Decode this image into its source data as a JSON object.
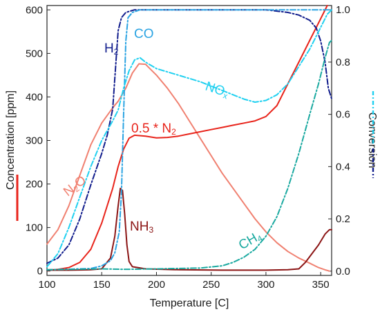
{
  "chart_data": {
    "type": "line",
    "xlabel": "Temperature [C]",
    "ylabel_left": "Concentration [ppm]",
    "ylabel_right": "Conversion",
    "xlim": [
      100,
      360
    ],
    "ylim_left": [
      -10,
      610
    ],
    "ylim_right": [
      -0.0164,
      1.0164
    ],
    "x_ticks": [
      100,
      150,
      200,
      250,
      300,
      350
    ],
    "y_left_ticks": [
      0,
      100,
      200,
      300,
      400,
      500,
      600
    ],
    "y_right_ticks": [
      "0.0",
      "0.2",
      "0.4",
      "0.6",
      "0.8",
      "1.0"
    ],
    "grid": false,
    "series": [
      {
        "name": "N2O",
        "label_main": "N",
        "label_sub": "2",
        "label_tail": "O",
        "axis": "left",
        "color": "#f08070",
        "dash": "solid",
        "points": [
          [
            100,
            62
          ],
          [
            110,
            95
          ],
          [
            120,
            150
          ],
          [
            130,
            220
          ],
          [
            140,
            290
          ],
          [
            150,
            340
          ],
          [
            160,
            375
          ],
          [
            165,
            390
          ],
          [
            172,
            420
          ],
          [
            178,
            455
          ],
          [
            184,
            476
          ],
          [
            190,
            475
          ],
          [
            200,
            450
          ],
          [
            210,
            420
          ],
          [
            220,
            385
          ],
          [
            230,
            345
          ],
          [
            240,
            305
          ],
          [
            250,
            265
          ],
          [
            260,
            225
          ],
          [
            270,
            190
          ],
          [
            280,
            155
          ],
          [
            290,
            120
          ],
          [
            300,
            90
          ],
          [
            310,
            65
          ],
          [
            320,
            45
          ],
          [
            330,
            30
          ],
          [
            340,
            18
          ],
          [
            348,
            8
          ],
          [
            355,
            2
          ],
          [
            358,
            0
          ]
        ]
      },
      {
        "name": "0.5 * N2",
        "label_main": "0.5 * N",
        "label_sub": "2",
        "label_tail": "",
        "axis": "left",
        "color": "#e8231a",
        "dash": "solid",
        "points": [
          [
            100,
            2
          ],
          [
            110,
            4
          ],
          [
            120,
            8
          ],
          [
            130,
            20
          ],
          [
            140,
            50
          ],
          [
            150,
            110
          ],
          [
            160,
            190
          ],
          [
            165,
            240
          ],
          [
            170,
            280
          ],
          [
            175,
            305
          ],
          [
            180,
            312
          ],
          [
            190,
            310
          ],
          [
            200,
            306
          ],
          [
            210,
            307
          ],
          [
            220,
            310
          ],
          [
            230,
            315
          ],
          [
            240,
            320
          ],
          [
            250,
            325
          ],
          [
            260,
            330
          ],
          [
            270,
            335
          ],
          [
            280,
            340
          ],
          [
            290,
            345
          ],
          [
            300,
            355
          ],
          [
            310,
            380
          ],
          [
            320,
            430
          ],
          [
            330,
            480
          ],
          [
            340,
            530
          ],
          [
            350,
            580
          ],
          [
            356,
            610
          ]
        ]
      },
      {
        "name": "NH3",
        "label_main": "NH",
        "label_sub": "3",
        "label_tail": "",
        "axis": "left",
        "color": "#8b1414",
        "dash": "solid",
        "points": [
          [
            100,
            2
          ],
          [
            120,
            2
          ],
          [
            140,
            3
          ],
          [
            150,
            5
          ],
          [
            158,
            30
          ],
          [
            162,
            80
          ],
          [
            165,
            150
          ],
          [
            167,
            190
          ],
          [
            169,
            185
          ],
          [
            171,
            130
          ],
          [
            173,
            60
          ],
          [
            175,
            22
          ],
          [
            178,
            10
          ],
          [
            190,
            5
          ],
          [
            220,
            3
          ],
          [
            260,
            2
          ],
          [
            300,
            2
          ],
          [
            320,
            3
          ],
          [
            330,
            5
          ],
          [
            336,
            20
          ],
          [
            342,
            40
          ],
          [
            348,
            60
          ],
          [
            354,
            85
          ],
          [
            358,
            95
          ],
          [
            360,
            95
          ]
        ]
      },
      {
        "name": "H2",
        "label_main": "H",
        "label_sub": "2",
        "label_tail": "",
        "axis": "right",
        "color": "#101c8c",
        "dash": "8,3,2,3",
        "points": [
          [
            100,
            0.03
          ],
          [
            110,
            0.05
          ],
          [
            120,
            0.1
          ],
          [
            130,
            0.2
          ],
          [
            140,
            0.33
          ],
          [
            150,
            0.45
          ],
          [
            155,
            0.52
          ],
          [
            160,
            0.62
          ],
          [
            163,
            0.8
          ],
          [
            165,
            0.92
          ],
          [
            168,
            0.97
          ],
          [
            172,
            0.99
          ],
          [
            180,
            1.0
          ],
          [
            300,
            1.0
          ],
          [
            320,
            0.99
          ],
          [
            330,
            0.98
          ],
          [
            340,
            0.96
          ],
          [
            346,
            0.93
          ],
          [
            350,
            0.88
          ],
          [
            354,
            0.8
          ],
          [
            357,
            0.7
          ],
          [
            360,
            0.66
          ]
        ]
      },
      {
        "name": "CO",
        "label_main": "CO",
        "label_sub": "",
        "label_tail": "",
        "axis": "right",
        "color": "#2aa3e2",
        "dash": "8,3,2,3",
        "points": [
          [
            100,
            0.005
          ],
          [
            140,
            0.01
          ],
          [
            150,
            0.02
          ],
          [
            158,
            0.04
          ],
          [
            162,
            0.07
          ],
          [
            166,
            0.15
          ],
          [
            168,
            0.3
          ],
          [
            170,
            0.6
          ],
          [
            172,
            0.88
          ],
          [
            174,
            0.97
          ],
          [
            178,
            0.99
          ],
          [
            185,
            1.0
          ],
          [
            360,
            1.0
          ]
        ]
      },
      {
        "name": "NOx",
        "label_main": "NO",
        "label_sub": "x",
        "label_tail": "",
        "axis": "left",
        "color": "#1ed0f0",
        "dash": "8,3,2,3",
        "points": [
          [
            100,
            10
          ],
          [
            110,
            40
          ],
          [
            120,
            100
          ],
          [
            130,
            170
          ],
          [
            140,
            240
          ],
          [
            150,
            300
          ],
          [
            160,
            345
          ],
          [
            165,
            370
          ],
          [
            170,
            420
          ],
          [
            175,
            460
          ],
          [
            180,
            485
          ],
          [
            185,
            490
          ],
          [
            190,
            480
          ],
          [
            200,
            465
          ],
          [
            220,
            450
          ],
          [
            240,
            435
          ],
          [
            260,
            415
          ],
          [
            280,
            395
          ],
          [
            290,
            388
          ],
          [
            300,
            392
          ],
          [
            310,
            405
          ],
          [
            320,
            430
          ],
          [
            330,
            470
          ],
          [
            340,
            510
          ],
          [
            350,
            560
          ],
          [
            356,
            590
          ],
          [
            360,
            600
          ]
        ]
      },
      {
        "name": "CH4",
        "label_main": "CH",
        "label_sub": "4",
        "label_tail": "",
        "axis": "left",
        "color": "#1aa9a0",
        "dash": "8,3,2,3",
        "points": [
          [
            100,
            3
          ],
          [
            150,
            5
          ],
          [
            170,
            4
          ],
          [
            200,
            5
          ],
          [
            240,
            7
          ],
          [
            260,
            12
          ],
          [
            270,
            20
          ],
          [
            280,
            32
          ],
          [
            290,
            50
          ],
          [
            300,
            80
          ],
          [
            310,
            125
          ],
          [
            320,
            190
          ],
          [
            330,
            270
          ],
          [
            340,
            360
          ],
          [
            348,
            430
          ],
          [
            354,
            490
          ],
          [
            358,
            525
          ],
          [
            360,
            530
          ]
        ]
      }
    ]
  }
}
